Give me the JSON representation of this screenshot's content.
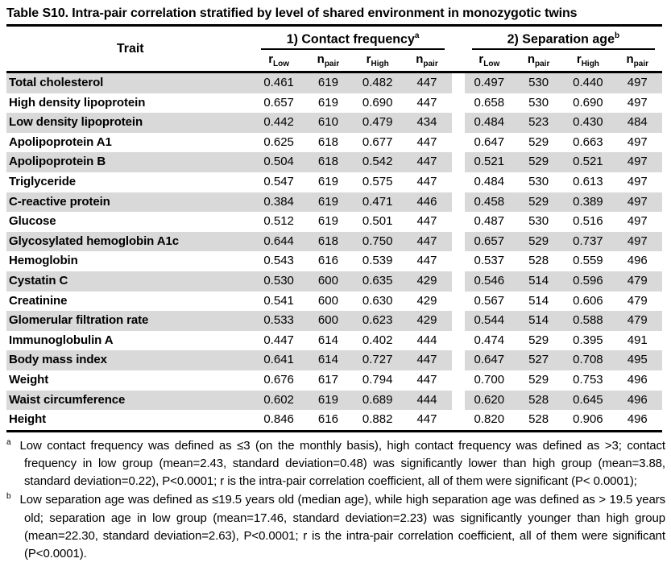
{
  "title": "Table S10. Intra-pair correlation stratified by level of shared environment in monozygotic twins",
  "table": {
    "trait_header": "Trait",
    "groups": [
      {
        "label": "1) Contact frequency",
        "sup": "a"
      },
      {
        "label": "2) Separation age",
        "sup": "b"
      }
    ],
    "subheaders": [
      {
        "base": "r",
        "sub": "Low"
      },
      {
        "base": "n",
        "sub": "pair"
      },
      {
        "base": "r",
        "sub": "High"
      },
      {
        "base": "n",
        "sub": "pair"
      }
    ],
    "rows": [
      {
        "trait": "Total cholesterol",
        "values": [
          "0.461",
          "619",
          "0.482",
          "447",
          "0.497",
          "530",
          "0.440",
          "497"
        ]
      },
      {
        "trait": "High density lipoprotein",
        "values": [
          "0.657",
          "619",
          "0.690",
          "447",
          "0.658",
          "530",
          "0.690",
          "497"
        ]
      },
      {
        "trait": "Low density lipoprotein",
        "values": [
          "0.442",
          "610",
          "0.479",
          "434",
          "0.484",
          "523",
          "0.430",
          "484"
        ]
      },
      {
        "trait": "Apolipoprotein A1",
        "values": [
          "0.625",
          "618",
          "0.677",
          "447",
          "0.647",
          "529",
          "0.663",
          "497"
        ]
      },
      {
        "trait": "Apolipoprotein B",
        "values": [
          "0.504",
          "618",
          "0.542",
          "447",
          "0.521",
          "529",
          "0.521",
          "497"
        ]
      },
      {
        "trait": "Triglyceride",
        "values": [
          "0.547",
          "619",
          "0.575",
          "447",
          "0.484",
          "530",
          "0.613",
          "497"
        ]
      },
      {
        "trait": "C-reactive protein",
        "values": [
          "0.384",
          "619",
          "0.471",
          "446",
          "0.458",
          "529",
          "0.389",
          "497"
        ]
      },
      {
        "trait": "Glucose",
        "values": [
          "0.512",
          "619",
          "0.501",
          "447",
          "0.487",
          "530",
          "0.516",
          "497"
        ]
      },
      {
        "trait": "Glycosylated hemoglobin A1c",
        "values": [
          "0.644",
          "618",
          "0.750",
          "447",
          "0.657",
          "529",
          "0.737",
          "497"
        ]
      },
      {
        "trait": "Hemoglobin",
        "values": [
          "0.543",
          "616",
          "0.539",
          "447",
          "0.537",
          "528",
          "0.559",
          "496"
        ]
      },
      {
        "trait": "Cystatin C",
        "values": [
          "0.530",
          "600",
          "0.635",
          "429",
          "0.546",
          "514",
          "0.596",
          "479"
        ]
      },
      {
        "trait": "Creatinine",
        "values": [
          "0.541",
          "600",
          "0.630",
          "429",
          "0.567",
          "514",
          "0.606",
          "479"
        ]
      },
      {
        "trait": "Glomerular filtration rate",
        "values": [
          "0.533",
          "600",
          "0.623",
          "429",
          "0.544",
          "514",
          "0.588",
          "479"
        ]
      },
      {
        "trait": "Immunoglobulin A",
        "values": [
          "0.447",
          "614",
          "0.402",
          "444",
          "0.474",
          "529",
          "0.395",
          "491"
        ]
      },
      {
        "trait": "Body mass index",
        "values": [
          "0.641",
          "614",
          "0.727",
          "447",
          "0.647",
          "527",
          "0.708",
          "495"
        ]
      },
      {
        "trait": "Weight",
        "values": [
          "0.676",
          "617",
          "0.794",
          "447",
          "0.700",
          "529",
          "0.753",
          "496"
        ]
      },
      {
        "trait": "Waist circumference",
        "values": [
          "0.602",
          "619",
          "0.689",
          "444",
          "0.620",
          "528",
          "0.645",
          "496"
        ]
      },
      {
        "trait": "Height",
        "values": [
          "0.846",
          "616",
          "0.882",
          "447",
          "0.820",
          "528",
          "0.906",
          "496"
        ]
      }
    ]
  },
  "footnotes": [
    {
      "marker": "a",
      "text": "Low contact frequency was defined as ≤3 (on the monthly basis), high contact frequency was defined as >3; contact frequency in low group (mean=2.43, standard deviation=0.48) was significantly lower than high group (mean=3.88, standard deviation=0.22), P<0.0001; r is the intra-pair correlation coefficient, all of them were significant (P< 0.0001);"
    },
    {
      "marker": "b",
      "text": "Low separation age was defined as ≤19.5 years old (median age), while high separation age was defined as > 19.5 years old; separation age in low group (mean=17.46, standard deviation=2.23) was significantly younger than high group (mean=22.30, standard deviation=2.63), P<0.0001; r is the intra-pair correlation coefficient, all of them were significant (P<0.0001)."
    }
  ]
}
